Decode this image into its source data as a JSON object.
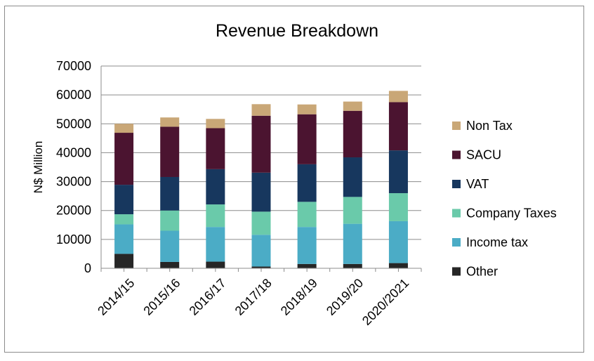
{
  "chart_data": {
    "type": "bar",
    "stacked": true,
    "title": "Revenue Breakdown",
    "xlabel": "",
    "ylabel": "N$ Million",
    "ylim": [
      0,
      70000
    ],
    "yticks": [
      0,
      10000,
      20000,
      30000,
      40000,
      50000,
      60000,
      70000
    ],
    "grid": true,
    "legend_position": "right",
    "categories": [
      "2014/15",
      "2015/16",
      "2016/17",
      "2017/18",
      "2018/19",
      "2019/20",
      "2020/2021"
    ],
    "series": [
      {
        "name": "Other",
        "color": "#262626",
        "values": [
          5000,
          2200,
          2300,
          600,
          1500,
          1500,
          1800
        ]
      },
      {
        "name": "Income tax",
        "color": "#4bacc6",
        "values": [
          10200,
          10800,
          12000,
          11000,
          12800,
          13900,
          14500
        ]
      },
      {
        "name": "Company Taxes",
        "color": "#6acaaa",
        "values": [
          3500,
          7000,
          7800,
          8000,
          8700,
          9300,
          9700
        ]
      },
      {
        "name": "VAT",
        "color": "#17375e",
        "values": [
          10200,
          11600,
          12200,
          13500,
          13000,
          13700,
          14800
        ]
      },
      {
        "name": "SACU",
        "color": "#4b1430",
        "values": [
          18000,
          17400,
          14200,
          19700,
          17300,
          16100,
          16700
        ]
      },
      {
        "name": "Non Tax",
        "color": "#c9a777",
        "values": [
          3100,
          3200,
          3200,
          4000,
          3400,
          3200,
          3900
        ]
      }
    ]
  }
}
